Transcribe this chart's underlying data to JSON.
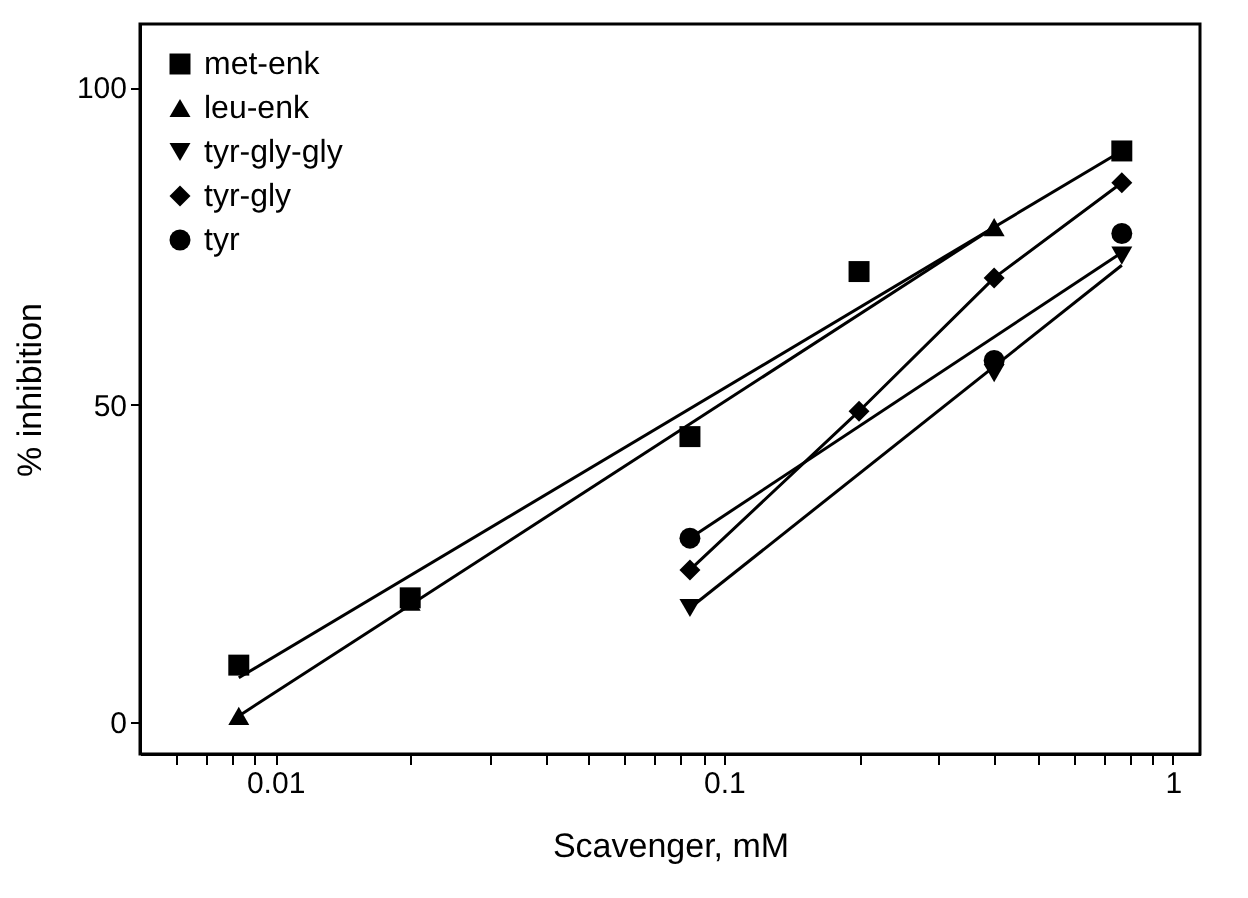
{
  "chart_data": {
    "type": "scatter",
    "xlabel": "Scavenger, mM",
    "ylabel": "% inhibition",
    "log": "x",
    "grid": false,
    "legend": "top left",
    "xlim": [
      0.005,
      1.15
    ],
    "ylim": [
      -5,
      110
    ],
    "xticks": [
      {
        "value": 0.006,
        "label": null
      },
      {
        "value": 0.007,
        "label": null
      },
      {
        "value": 0.008,
        "label": null
      },
      {
        "value": 0.009,
        "label": null
      },
      0.01,
      {
        "value": 0.02,
        "label": null
      },
      {
        "value": 0.03,
        "label": null
      },
      {
        "value": 0.04,
        "label": null
      },
      {
        "value": 0.05,
        "label": null
      },
      {
        "value": 0.06,
        "label": null
      },
      {
        "value": 0.07,
        "label": null
      },
      {
        "value": 0.08,
        "label": null
      },
      {
        "value": 0.09,
        "label": null
      },
      0.1,
      {
        "value": 0.2,
        "label": null
      },
      {
        "value": 0.3,
        "label": null
      },
      {
        "value": 0.4,
        "label": null
      },
      {
        "value": 0.5,
        "label": null
      },
      {
        "value": 0.6,
        "label": null
      },
      {
        "value": 0.7,
        "label": null
      },
      {
        "value": 0.8,
        "label": null
      },
      {
        "value": 0.9,
        "label": null
      },
      1
    ],
    "yticks": [
      0,
      50,
      100
    ],
    "series": [
      {
        "name": "met-enk",
        "color": "#000000",
        "marker": "square",
        "x": [
          0.0083,
          0.02,
          0.084,
          0.2,
          0.77
        ],
        "values": [
          9,
          19.6,
          45,
          71,
          90
        ]
      },
      {
        "name": "leu-enk",
        "color": "#000000",
        "marker": "triangle",
        "x": [
          0.0083,
          0.02,
          0.4
        ],
        "values": [
          1,
          19,
          78
        ]
      },
      {
        "name": "tyr-gly-gly",
        "color": "#000000",
        "marker": "triangle-down",
        "x": [
          0.084,
          0.4,
          0.77
        ],
        "values": [
          18,
          55,
          73.5
        ]
      },
      {
        "name": "tyr-gly",
        "color": "#000000",
        "marker": "diamond",
        "x": [
          0.084,
          0.2,
          0.4,
          0.77
        ],
        "values": [
          24,
          49,
          70,
          85
        ]
      },
      {
        "name": "tyr",
        "color": "#000000",
        "marker": "circle",
        "x": [
          0.084,
          0.4,
          0.77
        ],
        "values": [
          29,
          57,
          77
        ]
      },
      {
        "type": "line",
        "color": "#000000",
        "marker": "none",
        "line_style": "solid",
        "x": [
          0.0083,
          0.77
        ],
        "values": [
          7,
          90
        ]
      },
      {
        "type": "line",
        "color": "#000000",
        "marker": "none",
        "line_style": "solid",
        "x": [
          0.0083,
          0.4
        ],
        "values": [
          1,
          78
        ]
      },
      {
        "type": "line",
        "color": "#000000",
        "marker": "none",
        "line_style": "solid",
        "x": [
          0.084,
          0.2,
          0.4,
          0.77
        ],
        "values": [
          24,
          49,
          70,
          85
        ]
      },
      {
        "type": "line",
        "color": "#000000",
        "marker": "none",
        "line_style": "solid",
        "x": [
          0.084,
          0.77
        ],
        "values": [
          29,
          74
        ]
      },
      {
        "type": "line",
        "color": "#000000",
        "marker": "none",
        "line_style": "solid",
        "x": [
          0.084,
          0.77
        ],
        "values": [
          18,
          72
        ]
      }
    ]
  }
}
